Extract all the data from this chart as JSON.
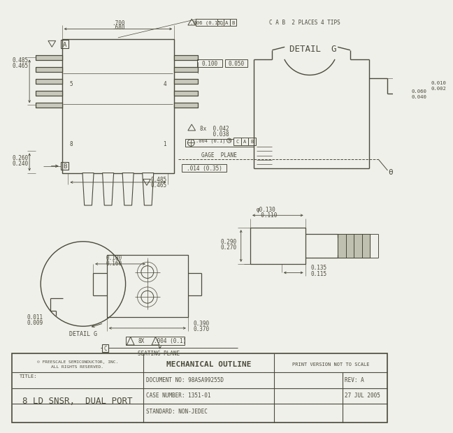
{
  "bg_color": "#f0f0eb",
  "line_color": "#4a4a3a",
  "title_block": {
    "copyright_line1": "© FREESCALE SEMICONDUCTOR, INC.",
    "copyright_line2": "ALL RIGHTS RESERVED.",
    "center_title": "MECHANICAL OUTLINE",
    "right_top": "PRINT VERSION NOT TO SCALE",
    "title_label": "TITLE:",
    "part_name": "8 LD SNSR,  DUAL PORT",
    "doc_no": "DOCUMENT NO: 98ASA99255D",
    "rev": "REV: A",
    "case": "CASE NUMBER: 1351-01",
    "date": "27 JUL 2005",
    "standard": "STANDARD: NON-JEDEC"
  },
  "dims": {
    "top_flatness": ".006 (0.15)",
    "flatness_suffix": "C A B  2 PLACES 4 TIPS",
    "d700": ".700",
    "d680": ".680",
    "d100": "0.100",
    "d050": "0.050",
    "d485a": "0.485",
    "d465a": "0.465",
    "d260": "0.260",
    "d240": "0.240",
    "d485b": "0.485",
    "d465b": "0.465",
    "d042": "8x  0.042",
    "d038": "    0.038",
    "pos_tol": ".004 (0.1)",
    "pos_suffix": "M C A B",
    "detail_g": "DETAIL  G",
    "gage_plane": "GAGE  PLANE",
    "d014": ".014 (0.35)",
    "theta": "θ",
    "d060": "0.060",
    "d040": "0.040",
    "d010": "0.010",
    "d002": "0.002",
    "d_dia130": "φ0.130",
    "d110": "  0.110",
    "d290": "0.290",
    "d270": "0.270",
    "d135": "0.135",
    "d115": "0.115",
    "d180": "0.180",
    "d160": "0.160",
    "d390": "0.390",
    "d370": "0.370",
    "d8x_004": "8X",
    "d004_01": ".004 (0.1)",
    "seating": "SEATING PLANE",
    "detail_g_ref": "DETAIL G",
    "d011": "0.011",
    "d009": "0.009",
    "pin5": "5",
    "pin4": "4",
    "pin8": "8",
    "pin1": "1",
    "label_A": "A",
    "label_B": "B",
    "label_C": "C"
  }
}
